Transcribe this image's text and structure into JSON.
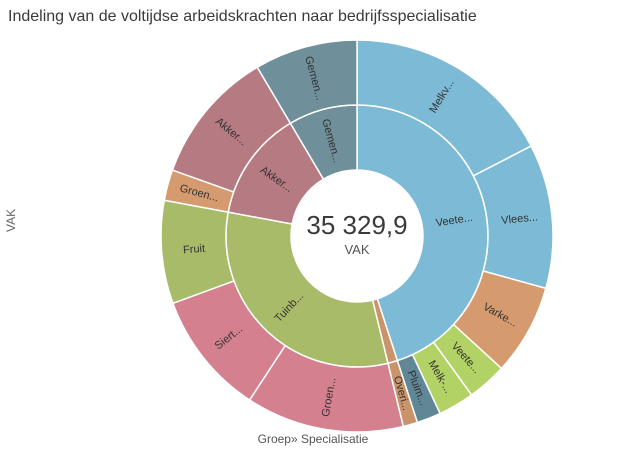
{
  "title": "Indeling van de voltijdse arbeidskrachten naar bedrijfsspecialisatie",
  "ylabel": "VAK",
  "xlabel": "Groep» Specialisatie",
  "center": {
    "value": "35 329,9",
    "unit": "VAK"
  },
  "chart_data": {
    "type": "sunburst",
    "title": "Indeling van de voltijdse arbeidskrachten naar bedrijfsspecialisatie",
    "xlabel": "Groep» Specialisatie",
    "ylabel": "VAK",
    "total": 35329.9,
    "groups": [
      {
        "label": "Veete...",
        "value": 15900,
        "color": "#7dbad5",
        "children": [
          {
            "label": "Melkv...",
            "value": 6150,
            "color": "#7dbad5"
          },
          {
            "label": "Vlees...",
            "value": 4200,
            "color": "#7dbad5"
          },
          {
            "label": "Varke...",
            "value": 2650,
            "color": "#d59a6e"
          },
          {
            "label": "Veete...",
            "value": 1150,
            "color": "#b2d266"
          },
          {
            "label": "Melk-...",
            "value": 1050,
            "color": "#b2d266"
          },
          {
            "label": "Pluim...",
            "value": 700,
            "color": "#5f8796"
          }
        ]
      },
      {
        "label": "",
        "value": 420,
        "color": "#c9946a",
        "children": [
          {
            "label": "Overi...",
            "value": 420,
            "color": "#c9946a"
          }
        ]
      },
      {
        "label": "Tuinb...",
        "value": 11200,
        "color": "#a8bb68",
        "children": [
          {
            "label": "Groen...",
            "value": 4600,
            "color": "#d4808f"
          },
          {
            "label": "Siert...",
            "value": 3600,
            "color": "#d4808f"
          },
          {
            "label": "Fruit",
            "value": 3000,
            "color": "#a8bb68"
          }
        ]
      },
      {
        "label": "Akker...",
        "value": 4800,
        "color": "#b67a82",
        "children": [
          {
            "label": "Groen...",
            "value": 900,
            "color": "#d59a6e"
          },
          {
            "label": "Akker...",
            "value": 3900,
            "color": "#b67a82"
          }
        ]
      },
      {
        "label": "Gemen...",
        "value": 3000,
        "color": "#6f8f9a",
        "children": [
          {
            "label": "Gemen...",
            "value": 3000,
            "color": "#6f8f9a"
          }
        ]
      }
    ]
  }
}
